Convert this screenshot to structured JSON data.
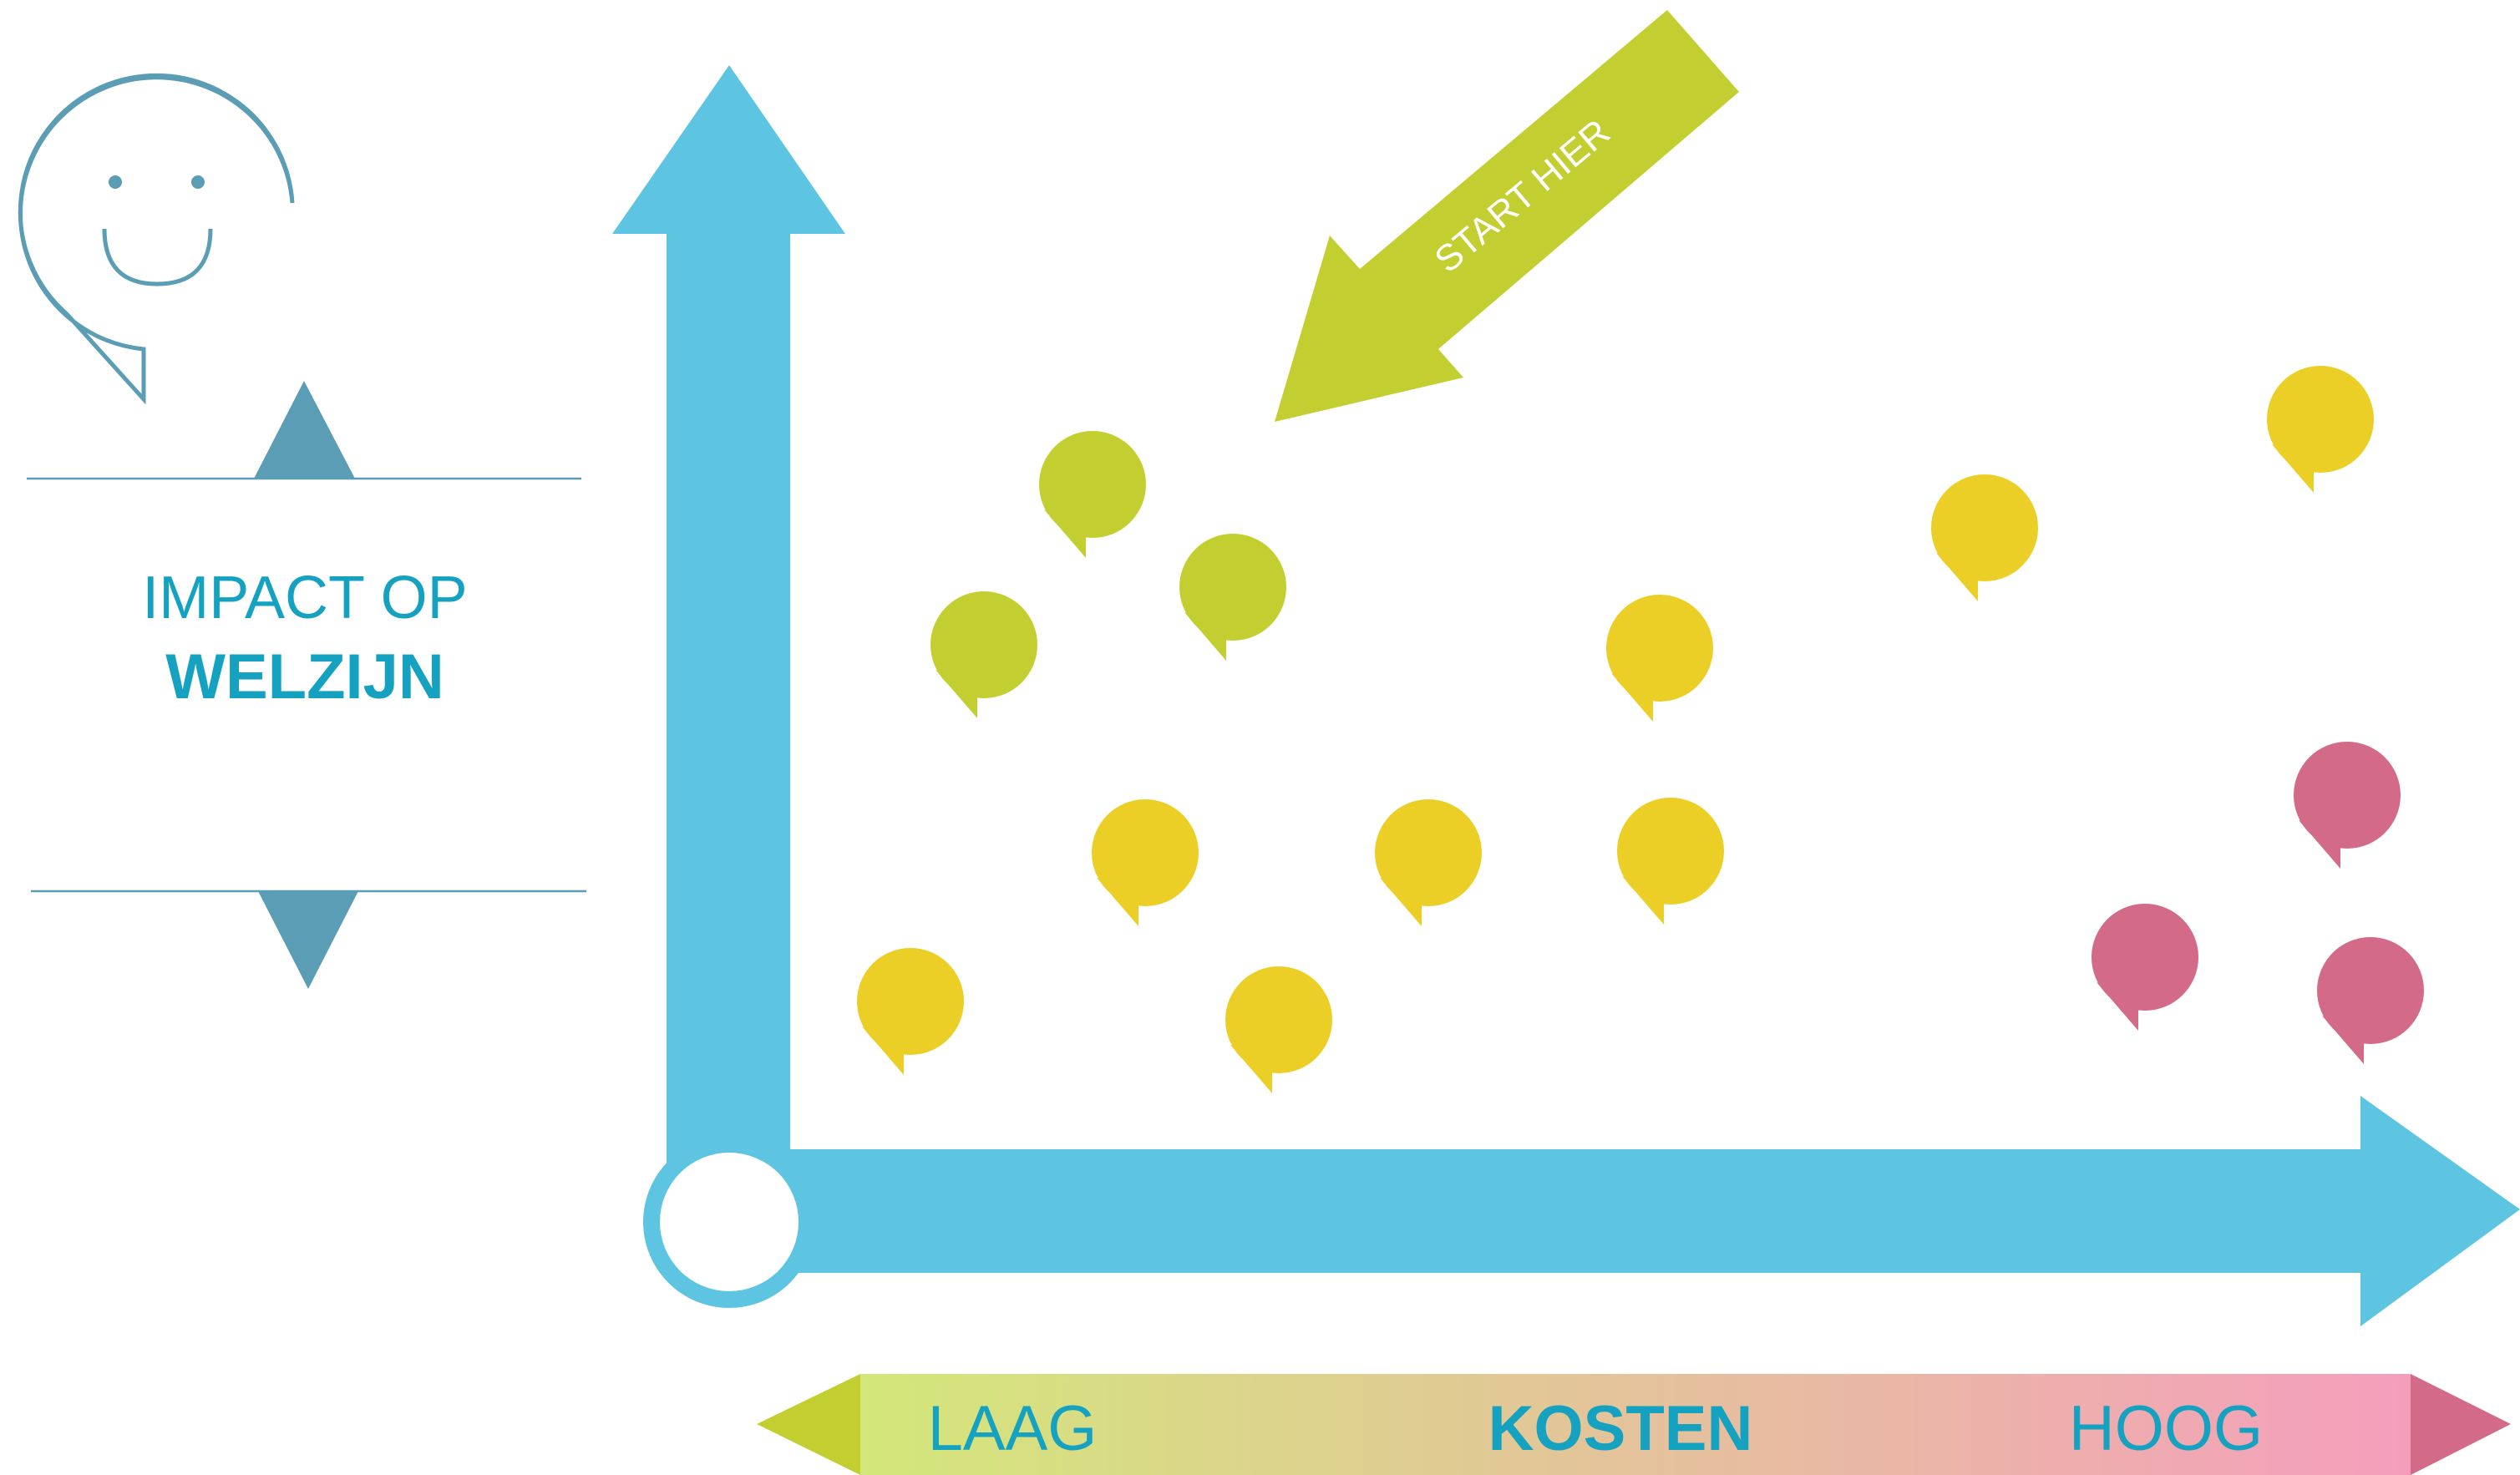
{
  "vertical_axis": {
    "label_line1": "IMPACT OP",
    "label_line2": "WELZIJN",
    "icon": "smiley-speech-bubble-icon"
  },
  "horizontal_axis": {
    "low_label": "LAAG",
    "title": "KOSTEN",
    "high_label": "HOOG"
  },
  "start_arrow": {
    "label": "START HIER"
  },
  "colors": {
    "axis_blue": "#5dc5e2",
    "text_teal": "#15a1c0",
    "icon_teal": "#5a9db5",
    "green": "#c3cf31",
    "yellow": "#ebcf27",
    "pink": "#d36a87",
    "gradient_left": "#d3e77a",
    "gradient_right": "#f59ebc"
  },
  "markers": [
    {
      "color": "green"
    },
    {
      "color": "green"
    },
    {
      "color": "green"
    },
    {
      "color": "yellow"
    },
    {
      "color": "yellow"
    },
    {
      "color": "yellow"
    },
    {
      "color": "yellow"
    },
    {
      "color": "yellow"
    },
    {
      "color": "yellow"
    },
    {
      "color": "yellow"
    },
    {
      "color": "yellow"
    },
    {
      "color": "pink"
    },
    {
      "color": "pink"
    },
    {
      "color": "pink"
    }
  ]
}
